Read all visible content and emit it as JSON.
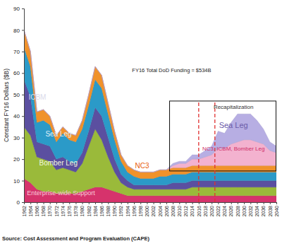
{
  "chart_data": {
    "type": "area",
    "stacked": true,
    "grid": false,
    "y_label": "Constant FY16 Dollars ($B)",
    "annotations": [
      "Recapitalization",
      "FY16 Total DoD Funding = $534B"
    ],
    "source": "Source: Cost Assessment and Program Evaluation (CAPE)",
    "x": [
      1962,
      1964,
      1966,
      1968,
      1970,
      1972,
      1974,
      1976,
      1978,
      1980,
      1982,
      1984,
      1986,
      1988,
      1990,
      1992,
      1994,
      1996,
      1998,
      2000,
      2002,
      2004,
      2006,
      2008,
      2010,
      2012,
      2014,
      2016,
      2018,
      2020,
      2022,
      2024,
      2026,
      2028,
      2030,
      2032,
      2034,
      2036,
      2038,
      2040
    ],
    "xlim": [
      1962,
      2040
    ],
    "xticks": [
      1962,
      1964,
      1966,
      1968,
      1970,
      1972,
      1974,
      1976,
      1978,
      1980,
      1982,
      1984,
      1986,
      1988,
      1990,
      1992,
      1994,
      1996,
      1998,
      2000,
      2002,
      2004,
      2006,
      2008,
      2010,
      2012,
      2014,
      2016,
      2018,
      2020,
      2022,
      2024,
      2026,
      2028,
      2030,
      2032,
      2034,
      2036,
      2038,
      2040
    ],
    "ylim": [
      0,
      90
    ],
    "yticks": [
      0,
      10,
      20,
      30,
      40,
      50,
      60,
      70,
      80,
      90
    ],
    "series": [
      {
        "name": "Enterprise-wide Support",
        "color": "#d6336c",
        "values": [
          11,
          9,
          6,
          5,
          5,
          4,
          4,
          4,
          4,
          5,
          6,
          7,
          7,
          6,
          5,
          4,
          3,
          3,
          3,
          3,
          3,
          3,
          3,
          3,
          3,
          3,
          3,
          3,
          3,
          3,
          3,
          3,
          3,
          3,
          3,
          3,
          3,
          3,
          3,
          3
        ]
      },
      {
        "name": "Bomber Leg",
        "color": "#9aba3a",
        "values": [
          24,
          22,
          15,
          15,
          14,
          11,
          12,
          11,
          10,
          13,
          20,
          27,
          22,
          15,
          9,
          5,
          4,
          3,
          3,
          3,
          3,
          3,
          3,
          3,
          3,
          3,
          4,
          4,
          4,
          4,
          4,
          4,
          4,
          4,
          4,
          4,
          4,
          4,
          4,
          4
        ]
      },
      {
        "name": "ICBM",
        "color": "#5b4fa0",
        "values": [
          22,
          18,
          7,
          7,
          7,
          5,
          5,
          4,
          4,
          5,
          7,
          10,
          11,
          9,
          6,
          4,
          3,
          2,
          2,
          2,
          2,
          2,
          2,
          3,
          3,
          3,
          3,
          3,
          3,
          3,
          3,
          3,
          3,
          3,
          3,
          3,
          3,
          3,
          3,
          3
        ]
      },
      {
        "name": "Sea Leg",
        "color": "#2b9ac8",
        "values": [
          15,
          14,
          9,
          11,
          10,
          8,
          11,
          10,
          10,
          11,
          12,
          13,
          13,
          11,
          9,
          6,
          4,
          4,
          3,
          3,
          3,
          4,
          4,
          4,
          4,
          4,
          4,
          4,
          4,
          4,
          4,
          4,
          4,
          4,
          4,
          4,
          4,
          4,
          4,
          4
        ]
      },
      {
        "name": "NC3",
        "color": "#f0922b",
        "values": [
          8,
          7,
          5,
          5,
          4,
          3,
          3,
          3,
          3,
          4,
          5,
          6,
          6,
          5,
          4,
          3,
          3,
          3,
          3,
          3,
          3,
          3,
          3,
          3,
          3,
          3,
          3,
          3,
          3,
          3,
          3,
          3,
          3,
          3,
          3,
          3,
          3,
          3,
          3,
          3
        ]
      },
      {
        "name": "NC3, ICBM, Bomber Leg",
        "color": "#f3b2cf",
        "values": [
          0,
          0,
          0,
          0,
          0,
          0,
          0,
          0,
          0,
          0,
          0,
          0,
          0,
          0,
          0,
          0,
          0,
          0,
          0,
          0,
          0,
          0,
          0,
          1,
          2,
          2,
          3,
          3,
          4,
          5,
          8,
          8,
          10,
          11,
          12,
          12,
          11,
          10,
          7,
          6
        ]
      },
      {
        "name": "Sea Leg",
        "color": "#b7aee3",
        "values": [
          0,
          0,
          0,
          0,
          0,
          0,
          0,
          0,
          0,
          0,
          0,
          0,
          0,
          0,
          0,
          0,
          0,
          0,
          0,
          0,
          0,
          0,
          0,
          1,
          1,
          1,
          2,
          2,
          3,
          4,
          8,
          7,
          10,
          13,
          12,
          12,
          10,
          7,
          4,
          3
        ]
      }
    ],
    "reference_lines": {
      "x": [
        2016,
        2021
      ],
      "color": "#e03030",
      "line_style": "dashed"
    },
    "box": {
      "x": [
        2007,
        2040
      ],
      "y": [
        14.5,
        47
      ]
    }
  }
}
